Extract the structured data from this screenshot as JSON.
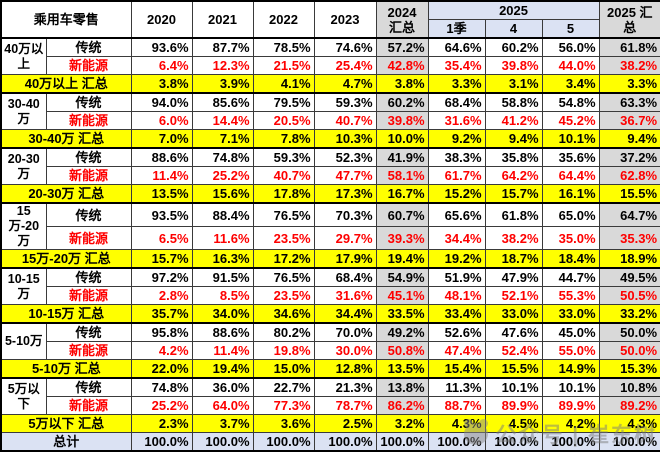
{
  "header": {
    "title": "乘用车零售",
    "year_cols": [
      "2020",
      "2021",
      "2022",
      "2023"
    ],
    "col_2024_total": "2024 汇总",
    "group_2025": "2025",
    "sub_cols_2025": [
      "1季",
      "4",
      "5"
    ],
    "col_2025_total": "2025 汇总"
  },
  "chart_data": {
    "type": "table",
    "title": "乘用车零售",
    "columns": [
      "2020",
      "2021",
      "2022",
      "2023",
      "2024汇总",
      "2025 1季",
      "2025 4",
      "2025 5",
      "2025汇总"
    ],
    "row_labels": {
      "traditional": "传统",
      "nev": "新能源"
    },
    "segments": [
      {
        "label": "40万以上",
        "traditional": [
          "93.6%",
          "87.7%",
          "78.5%",
          "74.6%",
          "57.2%",
          "64.6%",
          "60.2%",
          "56.0%",
          "61.8%"
        ],
        "nev": [
          "6.4%",
          "12.3%",
          "21.5%",
          "25.4%",
          "42.8%",
          "35.4%",
          "39.8%",
          "44.0%",
          "38.2%"
        ],
        "total_label": "40万以上 汇总",
        "total": [
          "3.8%",
          "3.9%",
          "4.1%",
          "4.7%",
          "3.8%",
          "3.3%",
          "3.1%",
          "3.4%",
          "3.3%"
        ]
      },
      {
        "label": "30-40万",
        "traditional": [
          "94.0%",
          "85.6%",
          "79.5%",
          "59.3%",
          "60.2%",
          "68.4%",
          "58.8%",
          "54.8%",
          "63.3%"
        ],
        "nev": [
          "6.0%",
          "14.4%",
          "20.5%",
          "40.7%",
          "39.8%",
          "31.6%",
          "41.2%",
          "45.2%",
          "36.7%"
        ],
        "total_label": "30-40万 汇总",
        "total": [
          "7.0%",
          "7.1%",
          "7.8%",
          "10.3%",
          "10.0%",
          "9.2%",
          "9.4%",
          "10.1%",
          "9.4%"
        ]
      },
      {
        "label": "20-30万",
        "traditional": [
          "88.6%",
          "74.8%",
          "59.3%",
          "52.3%",
          "41.9%",
          "38.3%",
          "35.8%",
          "35.6%",
          "37.2%"
        ],
        "nev": [
          "11.4%",
          "25.2%",
          "40.7%",
          "47.7%",
          "58.1%",
          "61.7%",
          "64.2%",
          "64.4%",
          "62.8%"
        ],
        "total_label": "20-30万 汇总",
        "total": [
          "13.5%",
          "15.6%",
          "17.8%",
          "17.3%",
          "16.7%",
          "15.2%",
          "15.7%",
          "16.1%",
          "15.5%"
        ]
      },
      {
        "label": "15万-20万",
        "traditional": [
          "93.5%",
          "88.4%",
          "76.5%",
          "70.3%",
          "60.7%",
          "65.6%",
          "61.8%",
          "65.0%",
          "64.7%"
        ],
        "nev": [
          "6.5%",
          "11.6%",
          "23.5%",
          "29.7%",
          "39.3%",
          "34.4%",
          "38.2%",
          "35.0%",
          "35.3%"
        ],
        "total_label": "15万-20万 汇总",
        "total": [
          "15.7%",
          "16.3%",
          "17.2%",
          "17.9%",
          "19.4%",
          "19.2%",
          "18.7%",
          "18.4%",
          "18.9%"
        ]
      },
      {
        "label": "10-15万",
        "traditional": [
          "97.2%",
          "91.5%",
          "76.5%",
          "68.4%",
          "54.9%",
          "51.9%",
          "47.9%",
          "44.7%",
          "49.5%"
        ],
        "nev": [
          "2.8%",
          "8.5%",
          "23.5%",
          "31.6%",
          "45.1%",
          "48.1%",
          "52.1%",
          "55.3%",
          "50.5%"
        ],
        "total_label": "10-15万 汇总",
        "total": [
          "35.7%",
          "34.0%",
          "34.6%",
          "34.4%",
          "33.5%",
          "33.4%",
          "33.0%",
          "33.0%",
          "33.2%"
        ]
      },
      {
        "label": "5-10万",
        "traditional": [
          "95.8%",
          "88.6%",
          "80.2%",
          "70.0%",
          "49.2%",
          "52.6%",
          "47.6%",
          "45.0%",
          "50.0%"
        ],
        "nev": [
          "4.2%",
          "11.4%",
          "19.8%",
          "30.0%",
          "50.8%",
          "47.4%",
          "52.4%",
          "55.0%",
          "50.0%"
        ],
        "total_label": "5-10万 汇总",
        "total": [
          "22.0%",
          "19.4%",
          "15.0%",
          "12.8%",
          "13.5%",
          "15.4%",
          "15.5%",
          "14.9%",
          "15.3%"
        ]
      },
      {
        "label": "5万以下",
        "traditional": [
          "74.8%",
          "36.0%",
          "22.7%",
          "21.3%",
          "13.8%",
          "11.3%",
          "10.1%",
          "10.1%",
          "10.8%"
        ],
        "nev": [
          "25.2%",
          "64.0%",
          "77.3%",
          "78.7%",
          "86.2%",
          "88.7%",
          "89.9%",
          "89.9%",
          "89.2%"
        ],
        "total_label": "5万以下 汇总",
        "total": [
          "2.3%",
          "3.7%",
          "3.6%",
          "2.5%",
          "3.2%",
          "4.3%",
          "4.5%",
          "4.2%",
          "4.3%"
        ]
      }
    ],
    "grand_total_label": "总计",
    "grand_total": [
      "100.0%",
      "100.0%",
      "100.0%",
      "100.0%",
      "100.0%",
      "100.0%",
      "100.0%",
      "100.0%",
      "100.0%"
    ]
  },
  "watermark": {
    "text": "公众号 | 崔东树"
  },
  "colors": {
    "summary_row_bg": "#ffff00",
    "total_column_bg": "#d9d9d9",
    "grand_total_bg": "#dbe2f3",
    "header_2025_bg": "#dbe2f3",
    "nev_text": "#fe0000",
    "border": "#000000"
  }
}
